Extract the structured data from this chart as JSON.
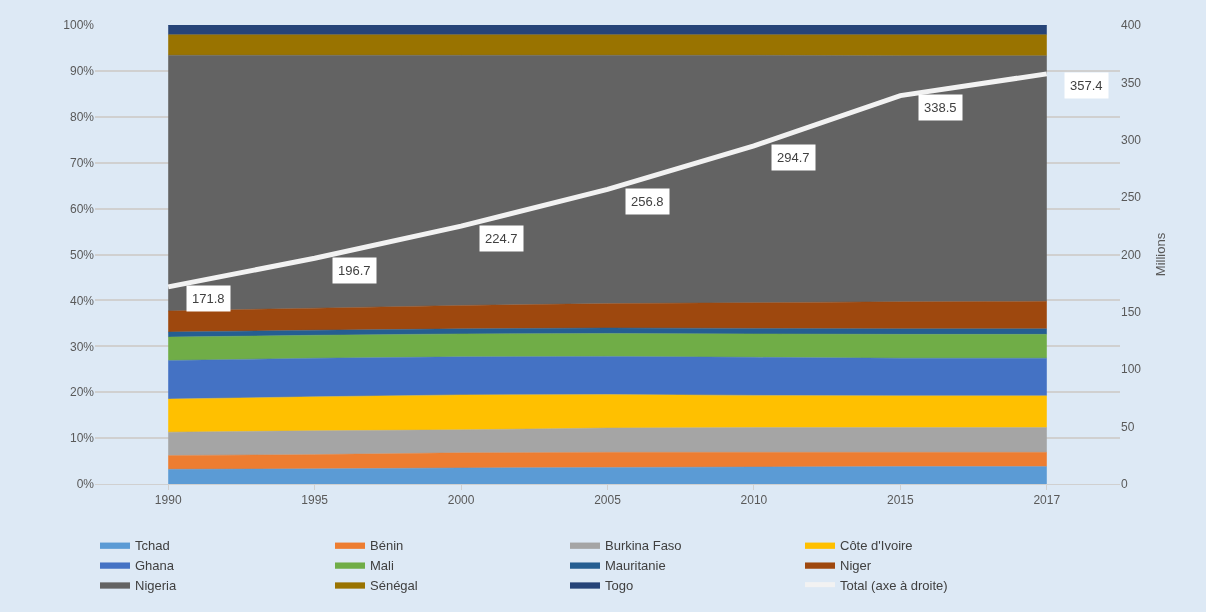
{
  "chart_data": {
    "type": "area",
    "stacked": true,
    "categories": [
      "1990",
      "1995",
      "2000",
      "2005",
      "2010",
      "2015",
      "2017"
    ],
    "series": [
      {
        "name": "Tchad",
        "color": "#5b9bd5",
        "values": [
          3.2,
          3.3,
          3.5,
          3.6,
          3.7,
          3.8,
          3.8
        ]
      },
      {
        "name": "Bénin",
        "color": "#ed7d31",
        "values": [
          3.0,
          3.1,
          3.3,
          3.3,
          3.2,
          3.1,
          3.1
        ]
      },
      {
        "name": "Burkina Faso",
        "color": "#a5a5a5",
        "values": [
          5.1,
          5.2,
          5.0,
          5.3,
          5.4,
          5.4,
          5.4
        ]
      },
      {
        "name": "Côte d'Ivoire",
        "color": "#ffc000",
        "values": [
          7.2,
          7.4,
          7.6,
          7.3,
          7.0,
          6.9,
          6.9
        ]
      },
      {
        "name": "Ghana",
        "color": "#4472c4",
        "values": [
          8.4,
          8.4,
          8.3,
          8.3,
          8.3,
          8.2,
          8.2
        ]
      },
      {
        "name": "Mali",
        "color": "#70ad47",
        "values": [
          5.1,
          5.0,
          5.0,
          5.0,
          5.1,
          5.2,
          5.2
        ]
      },
      {
        "name": "Mauritanie",
        "color": "#255e91",
        "values": [
          1.1,
          1.1,
          1.1,
          1.2,
          1.2,
          1.2,
          1.2
        ]
      },
      {
        "name": "Niger",
        "color": "#9e480e",
        "values": [
          4.6,
          4.8,
          5.1,
          5.3,
          5.6,
          5.9,
          6.0
        ]
      },
      {
        "name": "Nigeria",
        "color": "#636363",
        "values": [
          55.7,
          55.1,
          54.5,
          54.1,
          53.9,
          53.6,
          53.5
        ]
      },
      {
        "name": "Sénégal",
        "color": "#997300",
        "values": [
          4.5,
          4.5,
          4.5,
          4.5,
          4.5,
          4.6,
          4.6
        ]
      },
      {
        "name": "Togo",
        "color": "#264478",
        "values": [
          2.1,
          2.1,
          2.1,
          2.1,
          2.1,
          2.1,
          2.1
        ]
      },
      {
        "name": "Total (axe à droite)",
        "color": "#f2f2f2",
        "type": "line",
        "axis": "y2",
        "data_labels": true,
        "values": [
          171.8,
          196.7,
          224.7,
          256.8,
          294.7,
          338.5,
          357.4
        ]
      }
    ],
    "ylim": [
      0,
      100
    ],
    "yticks": [
      {
        "value": 0,
        "label": "0%"
      },
      {
        "value": 10,
        "label": "10%"
      },
      {
        "value": 20,
        "label": "20%"
      },
      {
        "value": 30,
        "label": "30%"
      },
      {
        "value": 40,
        "label": "40%"
      },
      {
        "value": 50,
        "label": "50%"
      },
      {
        "value": 60,
        "label": "60%"
      },
      {
        "value": 70,
        "label": "70%"
      },
      {
        "value": 80,
        "label": "80%"
      },
      {
        "value": 90,
        "label": "90%"
      },
      {
        "value": 100,
        "label": "100%"
      }
    ],
    "y2label": "Millions",
    "y2lim": [
      0,
      400
    ],
    "y2ticks": [
      0,
      50,
      100,
      150,
      200,
      250,
      300,
      350,
      400
    ],
    "grid": "y",
    "legend": "bottom",
    "marker": "none",
    "line_style": "solid"
  }
}
